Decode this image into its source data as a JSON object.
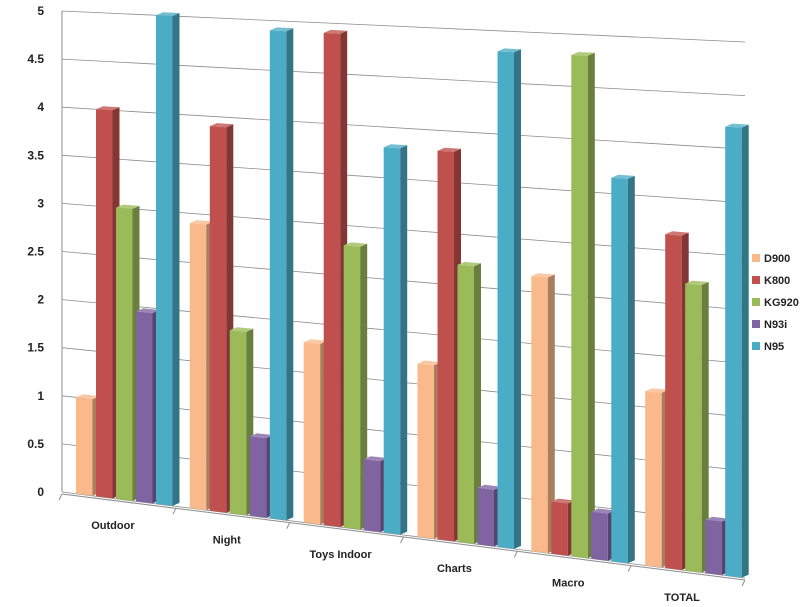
{
  "chart_data": {
    "type": "bar",
    "title": "",
    "xlabel": "",
    "ylabel": "",
    "ylim": [
      0,
      5
    ],
    "yticks": [
      "0",
      "0.5",
      "1",
      "1.5",
      "2",
      "2.5",
      "3",
      "3.5",
      "4",
      "4.5",
      "5"
    ],
    "grid": true,
    "legend_position": "right",
    "categories": [
      "Outdoor",
      "Night",
      "Toys Indoor",
      "Charts",
      "Macro",
      "TOTAL"
    ],
    "series": [
      {
        "name": "D900",
        "color": "#f9b98a",
        "values": [
          1.0,
          2.9,
          1.8,
          1.7,
          2.65,
          1.65
        ]
      },
      {
        "name": "K800",
        "color": "#c0504d",
        "values": [
          4.0,
          3.9,
          4.9,
          3.8,
          0.5,
          3.15
        ]
      },
      {
        "name": "KG920",
        "color": "#9bbb59",
        "values": [
          3.0,
          1.85,
          2.8,
          2.7,
          4.8,
          2.7
        ]
      },
      {
        "name": "N93i",
        "color": "#8064a2",
        "values": [
          1.95,
          0.8,
          0.7,
          0.55,
          0.45,
          0.5
        ]
      },
      {
        "name": "N95",
        "color": "#4bacc6",
        "values": [
          5.0,
          4.9,
          3.8,
          4.8,
          3.65,
          4.2
        ]
      }
    ]
  }
}
